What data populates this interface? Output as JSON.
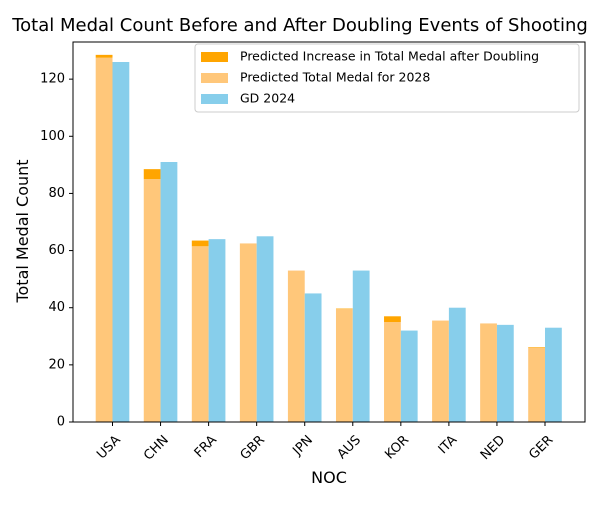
{
  "chart_data": {
    "type": "bar",
    "title": "Total Medal Count Before and After Doubling Events of Shooting",
    "xlabel": "NOC",
    "ylabel": "Total Medal Count",
    "ylim": [
      0,
      133
    ],
    "yticks": [
      0,
      20,
      40,
      60,
      80,
      100,
      120
    ],
    "categories": [
      "USA",
      "CHN",
      "FRA",
      "GBR",
      "JPN",
      "AUS",
      "KOR",
      "ITA",
      "NED",
      "GER"
    ],
    "series": [
      {
        "name": "Predicted Total Medal for 2028",
        "color": "#ffc77a",
        "values": [
          127.5,
          85,
          61.5,
          62.5,
          53,
          39.5,
          35,
          35.5,
          34.5,
          26
        ]
      },
      {
        "name": "Predicted Increase in Total Medal after Doubling",
        "color": "#ffa500",
        "stacked_on": "Predicted Total Medal for 2028",
        "values": [
          1,
          3.5,
          2,
          0,
          0,
          0.2,
          2,
          0,
          0,
          0.2
        ]
      },
      {
        "name": "GD 2024",
        "color": "#87ceeb",
        "values": [
          126,
          91,
          64,
          65,
          45,
          53,
          32,
          40,
          34,
          33
        ]
      }
    ],
    "legend": {
      "position": "top-right",
      "order": [
        "Predicted Increase in Total Medal after Doubling",
        "Predicted Total Medal for 2028",
        "GD 2024"
      ]
    },
    "grid": false
  }
}
